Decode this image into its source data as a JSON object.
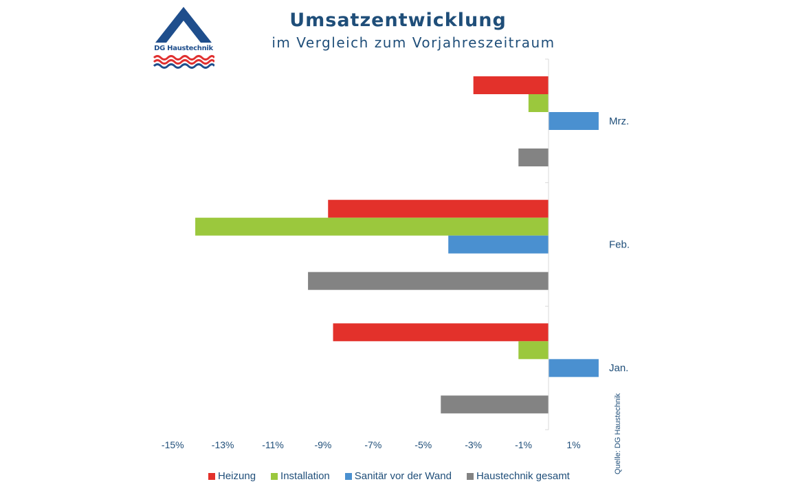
{
  "logo": {
    "text": "DG Haustechnik",
    "colors": {
      "navy": "#1f4e8c",
      "red": "#e03030"
    }
  },
  "header": {
    "title": "Umsatzentwicklung",
    "subtitle": "im Vergleich zum Vorjahreszeitraum"
  },
  "source": "Quelle: DG Haustechnik",
  "chart_data": {
    "type": "bar",
    "orientation": "horizontal",
    "title": "Umsatzentwicklung",
    "subtitle": "im Vergleich zum Vorjahreszeitraum",
    "xlabel": "",
    "ylabel": "",
    "unit": "%",
    "xlim": [
      -15,
      1.5
    ],
    "x_ticks": [
      -15,
      -13,
      -11,
      -9,
      -7,
      -5,
      -3,
      -1,
      1
    ],
    "x_tick_labels": [
      "-15%",
      "-13%",
      "-11%",
      "-9%",
      "-7%",
      "-5%",
      "-3%",
      "-1%",
      "1%"
    ],
    "categories": [
      "Mrz.",
      "Feb.",
      "Jan."
    ],
    "series": [
      {
        "name": "Heizung",
        "color": "#e3312b",
        "values": [
          -3.0,
          -8.8,
          -8.6
        ]
      },
      {
        "name": "Installation",
        "color": "#9bc83d",
        "values": [
          -0.8,
          -14.1,
          -1.2
        ]
      },
      {
        "name": "Sanitär vor der Wand",
        "color": "#4a90d0",
        "values": [
          2.0,
          -4.0,
          2.0
        ]
      },
      {
        "name": "Haustechnik gesamt",
        "color": "#838383",
        "values": [
          -1.2,
          -9.6,
          -4.3
        ]
      }
    ],
    "legend_position": "bottom",
    "grid": false
  }
}
